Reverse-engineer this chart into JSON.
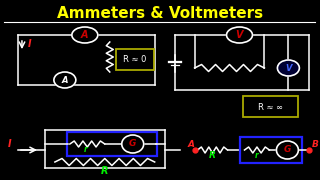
{
  "title": "Ammeters & Voltmeters",
  "title_color": "#FFFF00",
  "bg_color": "#000000",
  "label_I_color": "#FF2222",
  "label_R_color": "#00EE00",
  "label_r_color": "#00EE00",
  "label_A_color": "#FF2222",
  "label_B_color": "#FF2222",
  "label_G_color": "#FF6600",
  "wire_color": "#FFFFFF",
  "blue_box_color": "#2222FF",
  "yellow_box_color": "#AAAA00",
  "ammeter_bg": "#000000",
  "ammeter_border": "#FFFFFF",
  "ammeter_text": "#CC0000",
  "voltmeter_top_bg": "#000000",
  "voltmeter_top_border": "#FFFFFF",
  "voltmeter_top_text": "#CC0000",
  "voltmeter_side_bg": "#000044",
  "voltmeter_side_border": "#FFFFFF",
  "voltmeter_side_text": "#4466FF",
  "galv_bg": "#000000",
  "galv_border": "#FFFFFF",
  "galv_text": "#CC0000",
  "ammeter_series_bg": "#000000",
  "ammeter_series_border": "#FFFFFF",
  "ammeter_series_text": "#FFFFFF",
  "R_approx_0_text": "R ≈ 0",
  "R_approx_inf_text": "R ≈ ∞"
}
